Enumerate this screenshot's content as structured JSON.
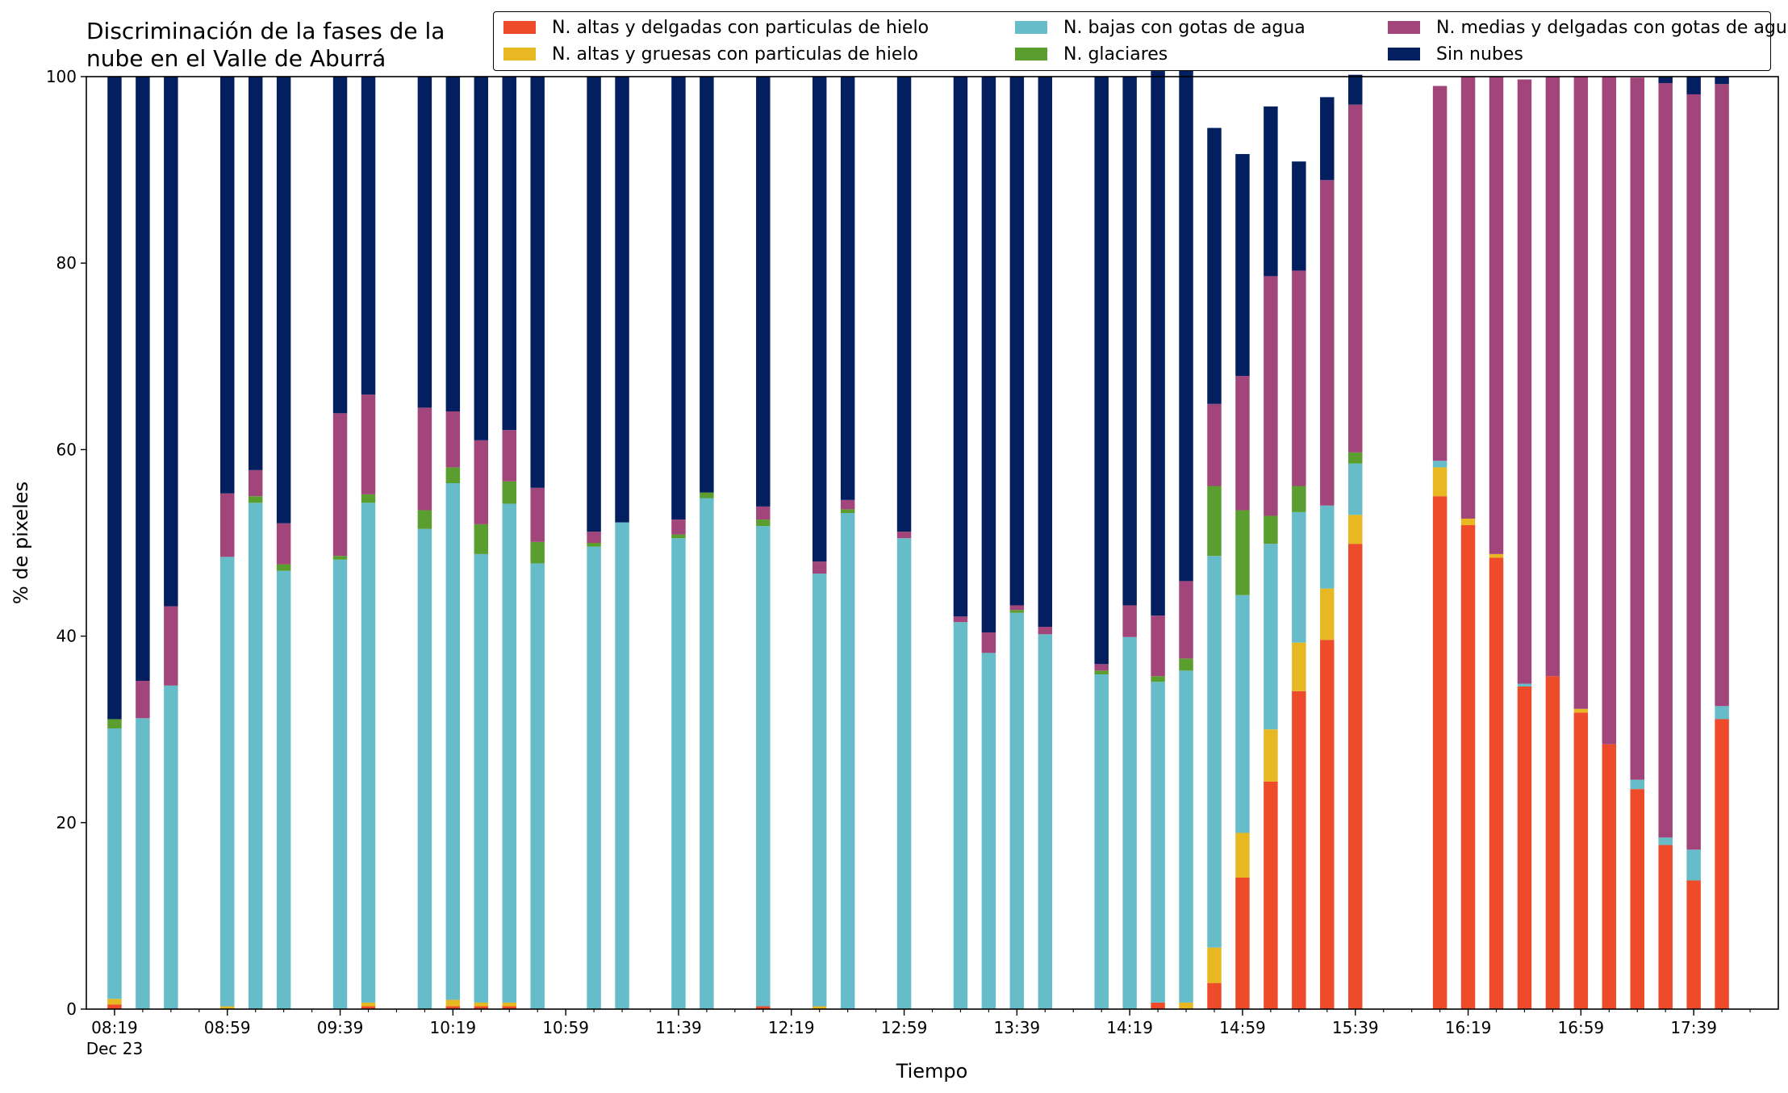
{
  "chart_data": {
    "type": "bar",
    "stacked": true,
    "title": "Discriminación de la fases de la\nnube en el Valle de Aburrá",
    "xlabel": "Tiempo",
    "ylabel": "% de pixeles",
    "ylim": [
      0,
      100
    ],
    "yticks": [
      0,
      20,
      40,
      60,
      80,
      100
    ],
    "xlim": [
      "08:09",
      "18:09"
    ],
    "x_tick_labels": [
      "08:19",
      "08:59",
      "09:39",
      "10:19",
      "10:59",
      "11:39",
      "12:19",
      "12:59",
      "13:39",
      "14:19",
      "14:59",
      "15:39",
      "16:19",
      "16:59",
      "17:39"
    ],
    "x_date_label": "Dec 23",
    "minor_tick_interval_minutes": 10,
    "bar_width_minutes": 5,
    "grid": false,
    "legend_position": "top-right",
    "times": [
      "08:19",
      "08:29",
      "08:39",
      "08:59",
      "09:09",
      "09:19",
      "09:39",
      "09:49",
      "10:09",
      "10:19",
      "10:29",
      "10:39",
      "10:49",
      "11:09",
      "11:19",
      "11:39",
      "11:49",
      "12:09",
      "12:29",
      "12:39",
      "12:59",
      "13:19",
      "13:29",
      "13:39",
      "13:49",
      "14:09",
      "14:19",
      "14:29",
      "14:39",
      "14:49",
      "14:59",
      "15:09",
      "15:19",
      "15:29",
      "15:39",
      "15:49",
      "16:09",
      "16:19",
      "16:29",
      "16:39",
      "16:49",
      "16:59",
      "17:09",
      "17:19",
      "17:29",
      "17:39",
      "17:49"
    ],
    "series": [
      {
        "name": "N. altas y delgadas con particulas de hielo",
        "color": "#ee4b2b",
        "values": [
          0.5,
          0,
          0,
          0,
          0,
          0,
          0,
          0.3,
          0,
          0.3,
          0.3,
          0.3,
          0,
          0,
          0,
          0,
          0,
          0.3,
          0,
          0,
          0,
          0,
          0,
          0,
          0,
          0,
          0,
          0.7,
          0,
          2.8,
          14.1,
          24.4,
          34.1,
          39.6,
          49.9,
          0,
          55.0,
          51.9,
          48.4,
          34.6,
          35.7,
          31.8,
          28.4,
          23.6,
          17.6,
          13.8,
          31.1
        ]
      },
      {
        "name": "N. altas y gruesas con particulas de hielo",
        "color": "#e8b823",
        "values": [
          0.6,
          0,
          0,
          0.3,
          0,
          0,
          0,
          0.4,
          0,
          0.7,
          0.4,
          0.4,
          0,
          0,
          0,
          0,
          0,
          0,
          0.3,
          0,
          0,
          0,
          0,
          0,
          0,
          0,
          0,
          0,
          0.7,
          3.8,
          4.8,
          5.6,
          5.2,
          5.5,
          3.1,
          0,
          3.1,
          0.7,
          0.4,
          0,
          0,
          0.4,
          0,
          0,
          0,
          0,
          0
        ]
      },
      {
        "name": "N. bajas con gotas de agua",
        "color": "#66bcc8",
        "values": [
          29.0,
          31.2,
          34.7,
          48.2,
          54.3,
          47.0,
          48.2,
          53.6,
          51.5,
          55.4,
          48.1,
          53.5,
          47.8,
          49.6,
          52.2,
          50.5,
          54.8,
          51.5,
          46.4,
          53.2,
          50.5,
          41.5,
          38.2,
          42.5,
          40.2,
          35.9,
          39.9,
          34.4,
          35.6,
          42.0,
          25.5,
          19.9,
          14.0,
          8.9,
          5.5,
          0,
          0.7,
          0,
          0,
          0.3,
          0,
          0,
          0,
          1.0,
          0.8,
          3.3,
          1.4
        ]
      },
      {
        "name": "N. glaciares",
        "color": "#5a9e2f",
        "values": [
          1.0,
          0,
          0,
          0,
          0.7,
          0.7,
          0.4,
          0.9,
          2.0,
          1.7,
          3.2,
          2.4,
          2.3,
          0.4,
          0,
          0.4,
          0.6,
          0.7,
          0,
          0.4,
          0,
          0,
          0,
          0.3,
          0,
          0.4,
          0,
          0.6,
          1.3,
          7.5,
          9.1,
          3.0,
          2.8,
          0,
          1.2,
          0,
          0,
          0,
          0,
          0,
          0,
          0,
          0,
          0,
          0,
          0,
          0
        ]
      },
      {
        "name": "N. medias y delgadas con gotas de agua",
        "color": "#a2457a",
        "values": [
          0,
          4.0,
          8.5,
          6.8,
          2.8,
          4.4,
          15.3,
          10.7,
          11.0,
          6.0,
          9.0,
          5.5,
          5.8,
          1.2,
          0,
          1.6,
          0,
          1.4,
          1.3,
          1.0,
          0.7,
          0.6,
          2.2,
          0.5,
          0.8,
          0.7,
          3.4,
          6.5,
          8.3,
          8.8,
          14.4,
          25.7,
          23.1,
          34.9,
          37.3,
          0,
          40.2,
          47.4,
          51.2,
          64.8,
          64.3,
          67.8,
          71.6,
          75.3,
          80.9,
          81.0,
          66.7
        ]
      },
      {
        "name": "Sin nubes",
        "color": "#031f60",
        "values": [
          68.9,
          64.8,
          56.8,
          44.7,
          42.2,
          47.9,
          36.1,
          34.1,
          35.5,
          35.9,
          39.0,
          37.9,
          44.1,
          48.8,
          47.8,
          47.5,
          44.6,
          46.1,
          52.0,
          45.4,
          48.8,
          57.9,
          59.6,
          56.7,
          59.0,
          63.0,
          56.7,
          58.4,
          56.5,
          29.6,
          23.8,
          18.2,
          11.7,
          8.9,
          3.2,
          0,
          0,
          0,
          0,
          0,
          0,
          0,
          0,
          0,
          0.7,
          1.9,
          0.8
        ]
      }
    ],
    "legend_order": [
      0,
      1,
      2,
      3,
      4,
      5
    ]
  }
}
